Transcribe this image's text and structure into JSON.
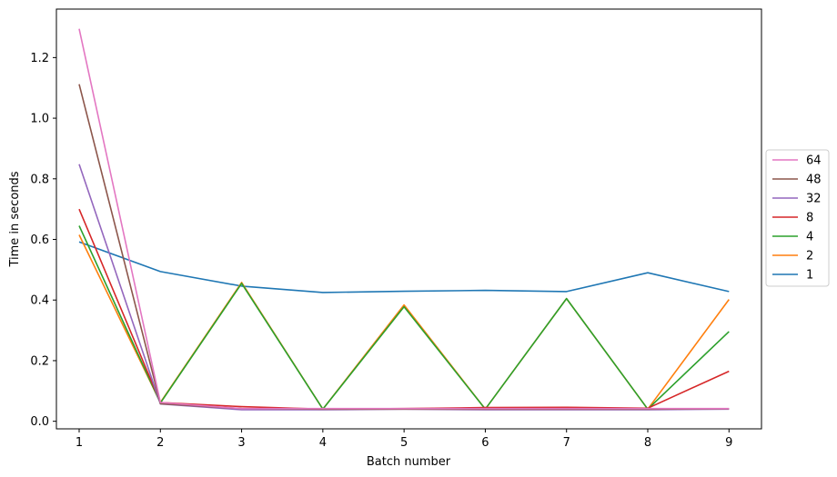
{
  "chart_data": {
    "type": "line",
    "xlabel": "Batch number",
    "ylabel": "Time in seconds",
    "x": [
      1,
      2,
      3,
      4,
      5,
      6,
      7,
      8,
      9
    ],
    "xlim": [
      0.72,
      9.4
    ],
    "ylim": [
      -0.025,
      1.36
    ],
    "xticks": [
      1,
      2,
      3,
      4,
      5,
      6,
      7,
      8,
      9
    ],
    "yticks": [
      0.0,
      0.2,
      0.4,
      0.6,
      0.8,
      1.0,
      1.2
    ],
    "ytick_labels": [
      "0.0",
      "0.2",
      "0.4",
      "0.6",
      "0.8",
      "1.0",
      "1.2"
    ],
    "grid": false,
    "legend_position": "right, outside plot",
    "series": [
      {
        "name": "64",
        "color": "#e377c2",
        "values": [
          1.295,
          0.062,
          0.042,
          0.042,
          0.042,
          0.042,
          0.042,
          0.042,
          0.042
        ]
      },
      {
        "name": "48",
        "color": "#8c564b",
        "values": [
          1.112,
          0.058,
          0.042,
          0.04,
          0.04,
          0.04,
          0.04,
          0.04,
          0.041
        ]
      },
      {
        "name": "32",
        "color": "#9467bd",
        "values": [
          0.848,
          0.057,
          0.038,
          0.038,
          0.04,
          0.038,
          0.038,
          0.038,
          0.04
        ]
      },
      {
        "name": "8",
        "color": "#d62728",
        "values": [
          0.7,
          0.062,
          0.048,
          0.04,
          0.042,
          0.045,
          0.046,
          0.043,
          0.165
        ]
      },
      {
        "name": "4",
        "color": "#2ca02c",
        "values": [
          0.645,
          0.06,
          0.455,
          0.04,
          0.378,
          0.04,
          0.405,
          0.04,
          0.296
        ]
      },
      {
        "name": "2",
        "color": "#ff7f0e",
        "values": [
          0.615,
          0.062,
          0.458,
          0.04,
          0.384,
          0.04,
          0.405,
          0.04,
          0.402
        ]
      },
      {
        "name": "1",
        "color": "#1f77b4",
        "values": [
          0.592,
          0.494,
          0.446,
          0.425,
          0.429,
          0.432,
          0.428,
          0.49,
          0.428
        ]
      }
    ]
  }
}
